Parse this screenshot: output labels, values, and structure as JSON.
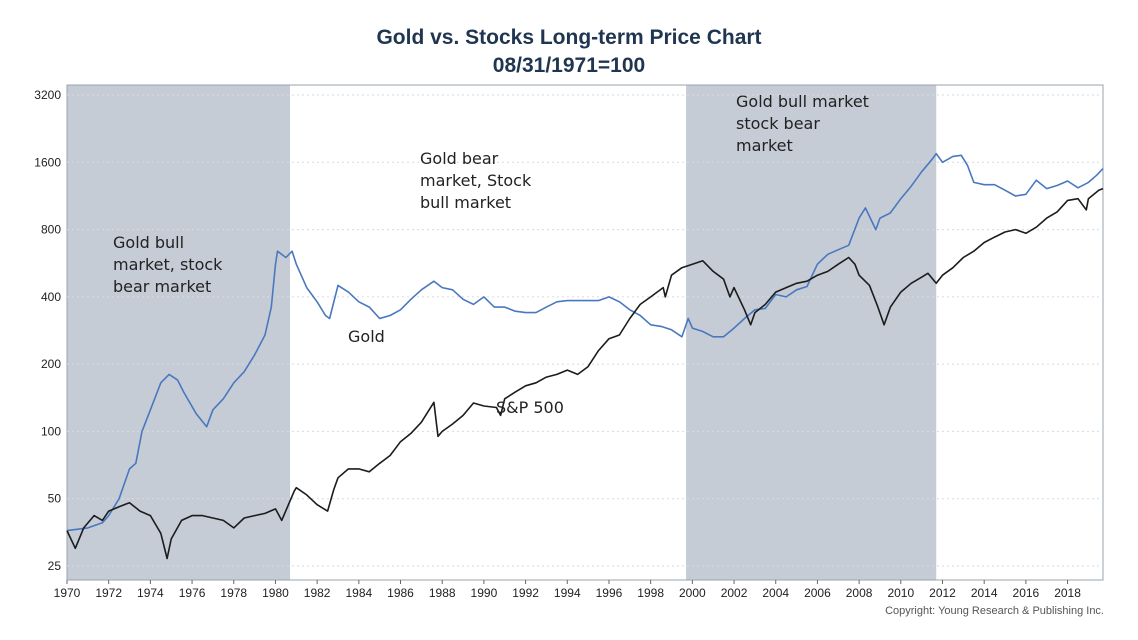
{
  "chart_data": {
    "type": "line",
    "title": "Gold vs. Stocks Long-term Price Chart",
    "subtitle": "08/31/1971=100",
    "y_scale": "log2",
    "ylim": [
      25,
      3200
    ],
    "yticks": [
      "3200",
      "1600",
      "800",
      "400",
      "200",
      "100",
      "50",
      "25"
    ],
    "ytick_values": [
      3200,
      1600,
      800,
      400,
      200,
      100,
      50,
      25
    ],
    "xlim": [
      1970,
      2019.7
    ],
    "xticks": [
      "1970",
      "1972",
      "1974",
      "1976",
      "1978",
      "1980",
      "1982",
      "1984",
      "1986",
      "1988",
      "1990",
      "1992",
      "1994",
      "1996",
      "1998",
      "2000",
      "2002",
      "2004",
      "2006",
      "2008",
      "2010",
      "2012",
      "2014",
      "2016",
      "2018"
    ],
    "grid": "horizontal dotted",
    "shaded_regions": [
      {
        "start": 1970,
        "end": 1980.7,
        "label": "Gold bull market, stock bear market"
      },
      {
        "start": 1999.7,
        "end": 2011.7,
        "label": "Gold bull market stock bear market"
      }
    ],
    "region_labels": [
      {
        "lines": [
          "Gold bull",
          "market, stock",
          "bear market"
        ]
      },
      {
        "lines": [
          "Gold bear",
          "market, Stock",
          "bull market"
        ]
      },
      {
        "lines": [
          "Gold bull market",
          "stock bear",
          "market"
        ]
      }
    ],
    "series": [
      {
        "name": "Gold",
        "color": "#4a78bf",
        "points": [
          [
            1970,
            36
          ],
          [
            1971,
            37
          ],
          [
            1971.7,
            39
          ],
          [
            1972,
            42
          ],
          [
            1972.5,
            50
          ],
          [
            1973,
            68
          ],
          [
            1973.3,
            72
          ],
          [
            1973.6,
            100
          ],
          [
            1974,
            125
          ],
          [
            1974.5,
            165
          ],
          [
            1974.9,
            180
          ],
          [
            1975.3,
            170
          ],
          [
            1975.6,
            150
          ],
          [
            1976.2,
            120
          ],
          [
            1976.7,
            105
          ],
          [
            1977,
            125
          ],
          [
            1977.5,
            140
          ],
          [
            1978,
            165
          ],
          [
            1978.5,
            185
          ],
          [
            1979,
            220
          ],
          [
            1979.5,
            270
          ],
          [
            1979.8,
            360
          ],
          [
            1980,
            560
          ],
          [
            1980.1,
            640
          ],
          [
            1980.5,
            600
          ],
          [
            1980.8,
            640
          ],
          [
            1981,
            560
          ],
          [
            1981.5,
            440
          ],
          [
            1982,
            380
          ],
          [
            1982.4,
            330
          ],
          [
            1982.6,
            320
          ],
          [
            1983,
            450
          ],
          [
            1983.5,
            420
          ],
          [
            1984,
            380
          ],
          [
            1984.5,
            360
          ],
          [
            1985,
            320
          ],
          [
            1985.5,
            330
          ],
          [
            1986,
            350
          ],
          [
            1986.5,
            390
          ],
          [
            1987,
            430
          ],
          [
            1987.6,
            470
          ],
          [
            1988,
            440
          ],
          [
            1988.5,
            430
          ],
          [
            1989,
            390
          ],
          [
            1989.5,
            370
          ],
          [
            1990,
            400
          ],
          [
            1990.5,
            360
          ],
          [
            1991,
            360
          ],
          [
            1991.5,
            345
          ],
          [
            1992,
            340
          ],
          [
            1992.5,
            340
          ],
          [
            1993,
            360
          ],
          [
            1993.5,
            380
          ],
          [
            1994,
            385
          ],
          [
            1994.5,
            385
          ],
          [
            1995,
            385
          ],
          [
            1995.5,
            385
          ],
          [
            1996,
            400
          ],
          [
            1996.5,
            380
          ],
          [
            1997,
            350
          ],
          [
            1997.5,
            330
          ],
          [
            1998,
            300
          ],
          [
            1998.5,
            295
          ],
          [
            1999,
            285
          ],
          [
            1999.5,
            265
          ],
          [
            1999.8,
            320
          ],
          [
            2000,
            290
          ],
          [
            2000.5,
            280
          ],
          [
            2001,
            265
          ],
          [
            2001.5,
            265
          ],
          [
            2002,
            290
          ],
          [
            2002.5,
            320
          ],
          [
            2003,
            350
          ],
          [
            2003.5,
            355
          ],
          [
            2004,
            410
          ],
          [
            2004.5,
            400
          ],
          [
            2005,
            430
          ],
          [
            2005.5,
            445
          ],
          [
            2006,
            560
          ],
          [
            2006.5,
            620
          ],
          [
            2007,
            650
          ],
          [
            2007.5,
            680
          ],
          [
            2008,
            900
          ],
          [
            2008.3,
            1000
          ],
          [
            2008.8,
            800
          ],
          [
            2009,
            900
          ],
          [
            2009.5,
            950
          ],
          [
            2010,
            1100
          ],
          [
            2010.5,
            1250
          ],
          [
            2011,
            1450
          ],
          [
            2011.5,
            1650
          ],
          [
            2011.7,
            1750
          ],
          [
            2012,
            1600
          ],
          [
            2012.5,
            1700
          ],
          [
            2012.9,
            1720
          ],
          [
            2013.2,
            1550
          ],
          [
            2013.5,
            1300
          ],
          [
            2014,
            1270
          ],
          [
            2014.5,
            1270
          ],
          [
            2015,
            1200
          ],
          [
            2015.5,
            1130
          ],
          [
            2016,
            1150
          ],
          [
            2016.5,
            1330
          ],
          [
            2017,
            1220
          ],
          [
            2017.5,
            1260
          ],
          [
            2018,
            1320
          ],
          [
            2018.5,
            1230
          ],
          [
            2019,
            1300
          ],
          [
            2019.4,
            1400
          ],
          [
            2019.7,
            1500
          ]
        ]
      },
      {
        "name": "S&P 500",
        "color": "#1c1c1c",
        "points": [
          [
            1970,
            36
          ],
          [
            1970.4,
            30
          ],
          [
            1970.8,
            37
          ],
          [
            1971.3,
            42
          ],
          [
            1971.7,
            40
          ],
          [
            1972,
            44
          ],
          [
            1972.5,
            46
          ],
          [
            1973,
            48
          ],
          [
            1973.5,
            44
          ],
          [
            1974,
            42
          ],
          [
            1974.5,
            35
          ],
          [
            1974.8,
            27
          ],
          [
            1975,
            33
          ],
          [
            1975.5,
            40
          ],
          [
            1976,
            42
          ],
          [
            1976.5,
            42
          ],
          [
            1977,
            41
          ],
          [
            1977.5,
            40
          ],
          [
            1978,
            37
          ],
          [
            1978.5,
            41
          ],
          [
            1979,
            42
          ],
          [
            1979.5,
            43
          ],
          [
            1980,
            45
          ],
          [
            1980.3,
            40
          ],
          [
            1980.9,
            54
          ],
          [
            1981,
            56
          ],
          [
            1981.5,
            52
          ],
          [
            1982,
            47
          ],
          [
            1982.5,
            44
          ],
          [
            1982.8,
            55
          ],
          [
            1983,
            62
          ],
          [
            1983.5,
            68
          ],
          [
            1984,
            68
          ],
          [
            1984.5,
            66
          ],
          [
            1985,
            72
          ],
          [
            1985.5,
            78
          ],
          [
            1986,
            90
          ],
          [
            1986.5,
            98
          ],
          [
            1987,
            110
          ],
          [
            1987.6,
            135
          ],
          [
            1987.8,
            95
          ],
          [
            1988,
            100
          ],
          [
            1988.5,
            108
          ],
          [
            1989,
            118
          ],
          [
            1989.5,
            134
          ],
          [
            1990,
            130
          ],
          [
            1990.6,
            128
          ],
          [
            1990.8,
            118
          ],
          [
            1991,
            140
          ],
          [
            1991.5,
            150
          ],
          [
            1992,
            160
          ],
          [
            1992.5,
            165
          ],
          [
            1993,
            175
          ],
          [
            1993.5,
            180
          ],
          [
            1994,
            188
          ],
          [
            1994.5,
            180
          ],
          [
            1995,
            195
          ],
          [
            1995.5,
            230
          ],
          [
            1996,
            260
          ],
          [
            1996.5,
            270
          ],
          [
            1997,
            320
          ],
          [
            1997.5,
            370
          ],
          [
            1998,
            400
          ],
          [
            1998.6,
            440
          ],
          [
            1998.7,
            400
          ],
          [
            1999,
            500
          ],
          [
            1999.5,
            540
          ],
          [
            2000,
            560
          ],
          [
            2000.5,
            580
          ],
          [
            2001,
            520
          ],
          [
            2001.5,
            480
          ],
          [
            2001.8,
            400
          ],
          [
            2002,
            440
          ],
          [
            2002.5,
            350
          ],
          [
            2002.8,
            300
          ],
          [
            2003,
            340
          ],
          [
            2003.5,
            370
          ],
          [
            2004,
            420
          ],
          [
            2004.5,
            440
          ],
          [
            2005,
            460
          ],
          [
            2005.5,
            470
          ],
          [
            2006,
            500
          ],
          [
            2006.5,
            520
          ],
          [
            2007,
            560
          ],
          [
            2007.5,
            600
          ],
          [
            2007.8,
            560
          ],
          [
            2008,
            500
          ],
          [
            2008.5,
            450
          ],
          [
            2008.9,
            360
          ],
          [
            2009.2,
            300
          ],
          [
            2009.5,
            360
          ],
          [
            2010,
            420
          ],
          [
            2010.5,
            460
          ],
          [
            2011,
            490
          ],
          [
            2011.3,
            510
          ],
          [
            2011.7,
            460
          ],
          [
            2012,
            500
          ],
          [
            2012.5,
            540
          ],
          [
            2013,
            600
          ],
          [
            2013.5,
            640
          ],
          [
            2014,
            700
          ],
          [
            2014.5,
            740
          ],
          [
            2015,
            780
          ],
          [
            2015.5,
            800
          ],
          [
            2016,
            770
          ],
          [
            2016.5,
            820
          ],
          [
            2017,
            900
          ],
          [
            2017.5,
            960
          ],
          [
            2018,
            1080
          ],
          [
            2018.5,
            1100
          ],
          [
            2018.9,
            980
          ],
          [
            2019,
            1100
          ],
          [
            2019.5,
            1200
          ],
          [
            2019.7,
            1220
          ]
        ]
      }
    ],
    "series_labels": [
      {
        "text": "Gold"
      },
      {
        "text": "S&P 500"
      }
    ],
    "copyright": "Copyright: Young Research & Publishing Inc."
  }
}
